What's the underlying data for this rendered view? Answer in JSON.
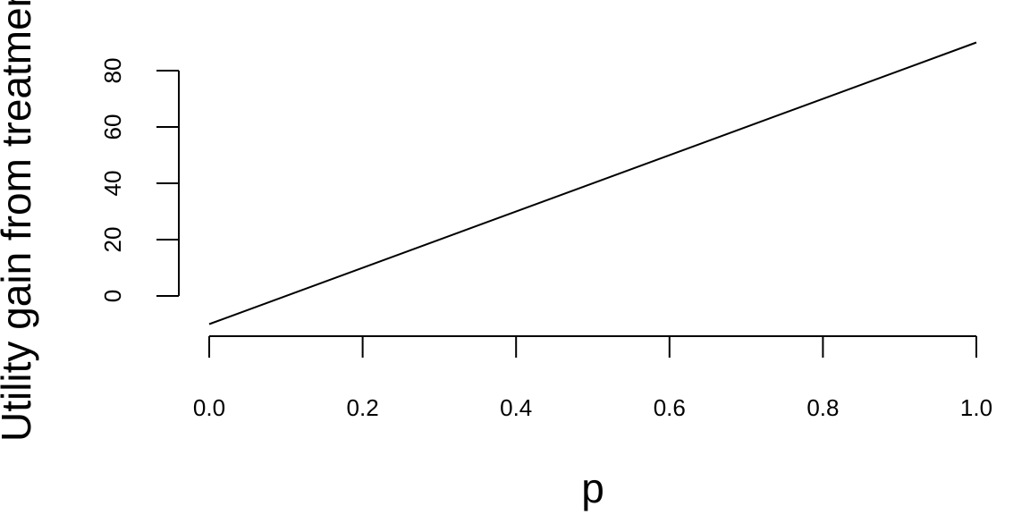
{
  "chart_data": {
    "type": "line",
    "x_label": "p",
    "y_label": "Utility gain from treatment",
    "x": [
      0,
      1
    ],
    "series": [
      {
        "color": "#000000",
        "values": [
          -10,
          90
        ]
      }
    ],
    "xlim": [
      0,
      1
    ],
    "ylim": [
      -10,
      90
    ],
    "xticks": [
      {
        "value": 0,
        "label": "0.0"
      },
      0.2,
      0.4,
      0.6,
      0.8,
      {
        "value": 1,
        "label": "1.0"
      }
    ],
    "yticks": [
      0,
      20,
      40,
      60,
      80
    ],
    "grid": false
  }
}
